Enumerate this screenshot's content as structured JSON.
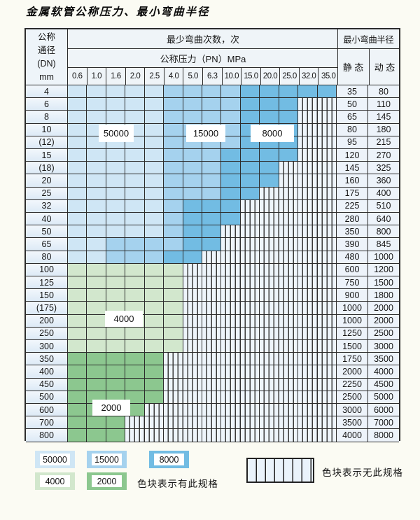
{
  "title": "金属软管公称压力、最小弯曲半径",
  "colors": {
    "blue_light": "#cfe6f5",
    "blue_mid": "#a5d2ee",
    "blue_dark": "#72bce3",
    "green_light": "#d2e7cd",
    "green_mid": "#8cc78f",
    "stripe_bg": "#eef5fb"
  },
  "table": {
    "header": {
      "dn_label_lines": [
        "公称",
        "通径",
        "(DN)",
        "mm"
      ],
      "bend_cycles_label": "最少弯曲次数，次",
      "pressure_label": "公称压力（PN）MPa",
      "pressure_values": [
        "0.6",
        "1.0",
        "1.6",
        "2.0",
        "2.5",
        "4.0",
        "5.0",
        "6.3",
        "10.0",
        "15.0",
        "20.0",
        "25.0",
        "32.0",
        "35.0"
      ],
      "radius_label": "最小弯曲半径",
      "static_label": "静 态",
      "dynamic_label": "动 态"
    },
    "zone_legend_meaning": {
      "L": "50000",
      "M": "15000",
      "D": "8000",
      "G4": "4000",
      "G2": "2000",
      "X": "无此规格"
    },
    "rows": [
      {
        "dn": "4",
        "static": "35",
        "dynamic": "80",
        "cells": [
          "L",
          "L",
          "L",
          "L",
          "L",
          "M",
          "M",
          "M",
          "M",
          "D",
          "D",
          "D",
          "D",
          "D"
        ]
      },
      {
        "dn": "6",
        "static": "50",
        "dynamic": "110",
        "cells": [
          "L",
          "L",
          "L",
          "L",
          "L",
          "M",
          "M",
          "M",
          "M",
          "D",
          "D",
          "D",
          "X",
          "X"
        ]
      },
      {
        "dn": "8",
        "static": "65",
        "dynamic": "145",
        "cells": [
          "L",
          "L",
          "L",
          "L",
          "L",
          "M",
          "M",
          "M",
          "M",
          "D",
          "D",
          "D",
          "X",
          "X"
        ]
      },
      {
        "dn": "10",
        "static": "80",
        "dynamic": "180",
        "cells": [
          "L",
          "L",
          "L",
          "L",
          "L",
          "M",
          "M",
          "M",
          "M",
          "D",
          "D",
          "D",
          "X",
          "X"
        ]
      },
      {
        "dn": "(12)",
        "static": "95",
        "dynamic": "215",
        "cells": [
          "L",
          "L",
          "L",
          "L",
          "L",
          "M",
          "M",
          "M",
          "M",
          "D",
          "D",
          "D",
          "X",
          "X"
        ]
      },
      {
        "dn": "15",
        "static": "120",
        "dynamic": "270",
        "cells": [
          "L",
          "L",
          "L",
          "L",
          "L",
          "M",
          "M",
          "M",
          "D",
          "D",
          "D",
          "D",
          "X",
          "X"
        ]
      },
      {
        "dn": "(18)",
        "static": "145",
        "dynamic": "325",
        "cells": [
          "L",
          "L",
          "L",
          "L",
          "L",
          "M",
          "M",
          "M",
          "D",
          "D",
          "D",
          "X",
          "X",
          "X"
        ]
      },
      {
        "dn": "20",
        "static": "160",
        "dynamic": "360",
        "cells": [
          "L",
          "L",
          "L",
          "L",
          "L",
          "M",
          "M",
          "M",
          "D",
          "D",
          "D",
          "X",
          "X",
          "X"
        ]
      },
      {
        "dn": "25",
        "static": "175",
        "dynamic": "400",
        "cells": [
          "L",
          "L",
          "L",
          "L",
          "L",
          "M",
          "M",
          "M",
          "D",
          "D",
          "X",
          "X",
          "X",
          "X"
        ]
      },
      {
        "dn": "32",
        "static": "225",
        "dynamic": "510",
        "cells": [
          "L",
          "L",
          "L",
          "L",
          "L",
          "M",
          "D",
          "D",
          "D",
          "X",
          "X",
          "X",
          "X",
          "X"
        ]
      },
      {
        "dn": "40",
        "static": "280",
        "dynamic": "640",
        "cells": [
          "L",
          "L",
          "L",
          "L",
          "L",
          "M",
          "D",
          "D",
          "D",
          "X",
          "X",
          "X",
          "X",
          "X"
        ]
      },
      {
        "dn": "50",
        "static": "350",
        "dynamic": "800",
        "cells": [
          "L",
          "L",
          "L",
          "L",
          "L",
          "M",
          "D",
          "D",
          "X",
          "X",
          "X",
          "X",
          "X",
          "X"
        ]
      },
      {
        "dn": "65",
        "static": "390",
        "dynamic": "845",
        "cells": [
          "L",
          "L",
          "M",
          "M",
          "M",
          "M",
          "D",
          "D",
          "X",
          "X",
          "X",
          "X",
          "X",
          "X"
        ]
      },
      {
        "dn": "80",
        "static": "480",
        "dynamic": "1000",
        "cells": [
          "L",
          "L",
          "M",
          "M",
          "M",
          "D",
          "D",
          "X",
          "X",
          "X",
          "X",
          "X",
          "X",
          "X"
        ]
      },
      {
        "dn": "100",
        "static": "600",
        "dynamic": "1200",
        "cells": [
          "G4",
          "G4",
          "G4",
          "G4",
          "G4",
          "G4",
          "X",
          "X",
          "X",
          "X",
          "X",
          "X",
          "X",
          "X"
        ]
      },
      {
        "dn": "125",
        "static": "750",
        "dynamic": "1500",
        "cells": [
          "G4",
          "G4",
          "G4",
          "G4",
          "G4",
          "G4",
          "X",
          "X",
          "X",
          "X",
          "X",
          "X",
          "X",
          "X"
        ]
      },
      {
        "dn": "150",
        "static": "900",
        "dynamic": "1800",
        "cells": [
          "G4",
          "G4",
          "G4",
          "G4",
          "G4",
          "G4",
          "X",
          "X",
          "X",
          "X",
          "X",
          "X",
          "X",
          "X"
        ]
      },
      {
        "dn": "(175)",
        "static": "1000",
        "dynamic": "2000",
        "cells": [
          "G4",
          "G4",
          "G4",
          "G4",
          "G4",
          "G4",
          "X",
          "X",
          "X",
          "X",
          "X",
          "X",
          "X",
          "X"
        ]
      },
      {
        "dn": "200",
        "static": "1000",
        "dynamic": "2000",
        "cells": [
          "G4",
          "G4",
          "G4",
          "G4",
          "G4",
          "G4",
          "X",
          "X",
          "X",
          "X",
          "X",
          "X",
          "X",
          "X"
        ]
      },
      {
        "dn": "250",
        "static": "1250",
        "dynamic": "2500",
        "cells": [
          "G4",
          "G4",
          "G4",
          "G4",
          "G4",
          "G4",
          "X",
          "X",
          "X",
          "X",
          "X",
          "X",
          "X",
          "X"
        ]
      },
      {
        "dn": "300",
        "static": "1500",
        "dynamic": "3000",
        "cells": [
          "G4",
          "G4",
          "G4",
          "G4",
          "G4",
          "G4",
          "X",
          "X",
          "X",
          "X",
          "X",
          "X",
          "X",
          "X"
        ]
      },
      {
        "dn": "350",
        "static": "1750",
        "dynamic": "3500",
        "cells": [
          "G2",
          "G2",
          "G2",
          "G2",
          "G2",
          "X",
          "X",
          "X",
          "X",
          "X",
          "X",
          "X",
          "X",
          "X"
        ]
      },
      {
        "dn": "400",
        "static": "2000",
        "dynamic": "4000",
        "cells": [
          "G2",
          "G2",
          "G2",
          "G2",
          "G2",
          "X",
          "X",
          "X",
          "X",
          "X",
          "X",
          "X",
          "X",
          "X"
        ]
      },
      {
        "dn": "450",
        "static": "2250",
        "dynamic": "4500",
        "cells": [
          "G2",
          "G2",
          "G2",
          "G2",
          "G2",
          "X",
          "X",
          "X",
          "X",
          "X",
          "X",
          "X",
          "X",
          "X"
        ]
      },
      {
        "dn": "500",
        "static": "2500",
        "dynamic": "5000",
        "cells": [
          "G2",
          "G2",
          "G2",
          "G2",
          "G2",
          "X",
          "X",
          "X",
          "X",
          "X",
          "X",
          "X",
          "X",
          "X"
        ]
      },
      {
        "dn": "600",
        "static": "3000",
        "dynamic": "6000",
        "cells": [
          "G2",
          "G2",
          "G2",
          "G2",
          "X",
          "X",
          "X",
          "X",
          "X",
          "X",
          "X",
          "X",
          "X",
          "X"
        ]
      },
      {
        "dn": "700",
        "static": "3500",
        "dynamic": "7000",
        "cells": [
          "G2",
          "G2",
          "G2",
          "X",
          "X",
          "X",
          "X",
          "X",
          "X",
          "X",
          "X",
          "X",
          "X",
          "X"
        ]
      },
      {
        "dn": "800",
        "static": "4000",
        "dynamic": "8000",
        "cells": [
          "G2",
          "G2",
          "G2",
          "X",
          "X",
          "X",
          "X",
          "X",
          "X",
          "X",
          "X",
          "X",
          "X",
          "X"
        ]
      }
    ]
  },
  "zone_labels": [
    {
      "text": "50000"
    },
    {
      "text": "15000"
    },
    {
      "text": "8000"
    },
    {
      "text": "4000"
    },
    {
      "text": "2000"
    }
  ],
  "legend": {
    "chips": [
      {
        "label": "50000",
        "color_key": "blue_light"
      },
      {
        "label": "15000",
        "color_key": "blue_mid"
      },
      {
        "label": "8000",
        "color_key": "blue_dark"
      },
      {
        "label": "4000",
        "color_key": "green_light"
      },
      {
        "label": "2000",
        "color_key": "green_mid"
      }
    ],
    "available_note": "色块表示有此规格",
    "unavailable_note": "色块表示无此规格"
  }
}
